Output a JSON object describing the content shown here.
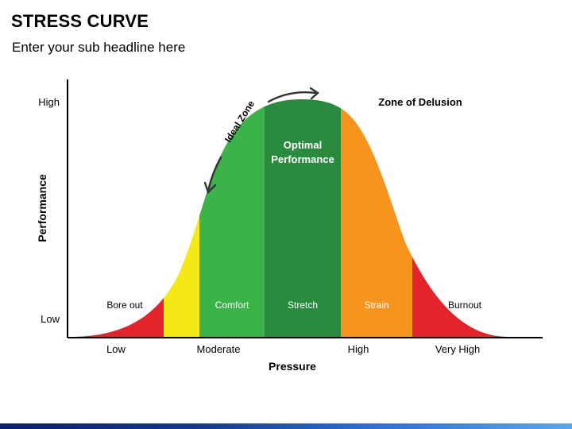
{
  "header": {
    "title": "STRESS CURVE",
    "subtitle": "Enter your sub headline here"
  },
  "axes": {
    "y_label": "Performance",
    "y_high": "High",
    "y_low": "Low",
    "x_label": "Pressure",
    "x_ticks": [
      "Low",
      "Moderate",
      "High",
      "Very High"
    ]
  },
  "zones": [
    {
      "label": "Bore out",
      "color": "#e3242b"
    },
    {
      "label": "",
      "color": "#f5e817"
    },
    {
      "label": "Comfort",
      "color": "#3cb34a"
    },
    {
      "label": "Stretch",
      "color": "#2a8a3e"
    },
    {
      "label": "Strain",
      "color": "#f7941d"
    },
    {
      "label": "Burnout",
      "color": "#e3242b"
    }
  ],
  "annotations": {
    "optimal_line1": "Optimal",
    "optimal_line2": "Performance",
    "ideal_zone": "Ideal Zone",
    "delusion": "Zone of Delusion"
  },
  "colors": {
    "axis": "#000000",
    "arrow": "#333333",
    "bar_dark": "#0a1f6b",
    "bar_light": "#58a6ef"
  }
}
